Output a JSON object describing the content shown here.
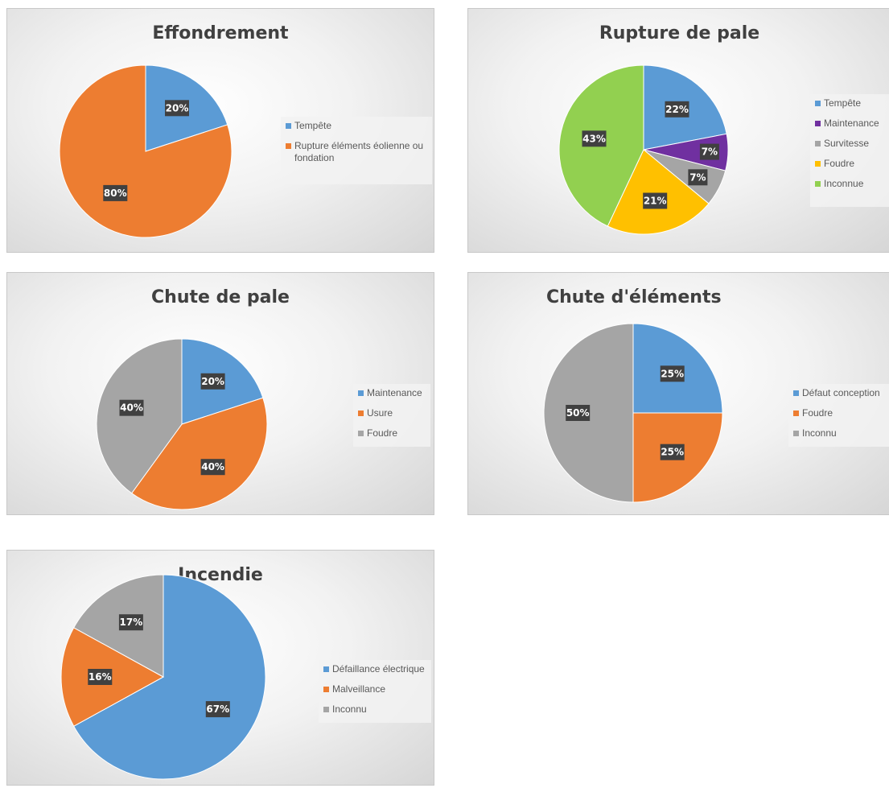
{
  "chart_data": [
    {
      "type": "pie",
      "title": "Effondrement",
      "categories": [
        "Tempête",
        "Rupture éléments éolienne ou fondation"
      ],
      "values": [
        20,
        80
      ],
      "labels": [
        "20%",
        "80%"
      ],
      "colors": [
        "#5b9bd5",
        "#ed7d31"
      ],
      "legend": "right"
    },
    {
      "type": "pie",
      "title": "Rupture de pale",
      "categories": [
        "Tempête",
        "Maintenance",
        "Survitesse",
        "Foudre",
        "Inconnue"
      ],
      "values": [
        22,
        7,
        7,
        21,
        43
      ],
      "labels": [
        "22%",
        "7%",
        "7%",
        "21%",
        "43%"
      ],
      "colors": [
        "#5b9bd5",
        "#7030a0",
        "#a5a5a5",
        "#ffc000",
        "#92d050"
      ],
      "legend": "right"
    },
    {
      "type": "pie",
      "title": "Chute de pale",
      "categories": [
        "Maintenance",
        "Usure",
        "Foudre"
      ],
      "values": [
        20,
        40,
        40
      ],
      "labels": [
        "20%",
        "40%",
        "40%"
      ],
      "colors": [
        "#5b9bd5",
        "#ed7d31",
        "#a5a5a5"
      ],
      "legend": "right"
    },
    {
      "type": "pie",
      "title": "Chute d'éléments",
      "categories": [
        "Défaut conception",
        "Foudre",
        "Inconnu"
      ],
      "values": [
        25,
        25,
        50
      ],
      "labels": [
        "25%",
        "25%",
        "50%"
      ],
      "colors": [
        "#5b9bd5",
        "#ed7d31",
        "#a5a5a5"
      ],
      "legend": "right"
    },
    {
      "type": "pie",
      "title": "Incendie",
      "categories": [
        "Défaillance électrique",
        "Malveillance",
        "Inconnu"
      ],
      "values": [
        67,
        16,
        17
      ],
      "labels": [
        "67%",
        "16%",
        "17%"
      ],
      "colors": [
        "#5b9bd5",
        "#ed7d31",
        "#a5a5a5"
      ],
      "legend": "right"
    }
  ]
}
